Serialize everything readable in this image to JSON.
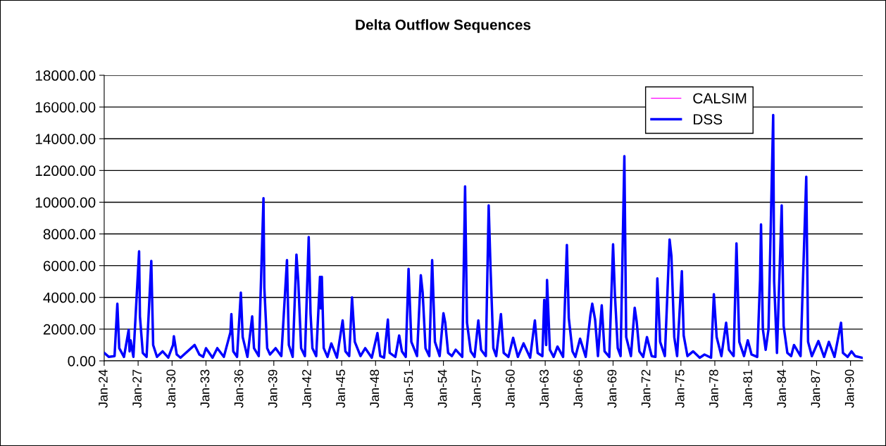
{
  "chart_data": {
    "type": "line",
    "title": "Delta Outflow Sequences",
    "x": [
      "1924-01",
      "1924-06",
      "1924-12",
      "1925-03",
      "1925-05",
      "1925-10",
      "1926-03",
      "1926-04",
      "1926-05",
      "1926-08",
      "1927-02",
      "1927-03",
      "1927-06",
      "1927-10",
      "1928-03",
      "1928-05",
      "1928-09",
      "1929-03",
      "1929-09",
      "1930-02",
      "1930-03",
      "1930-06",
      "1930-10",
      "1932-01",
      "1932-06",
      "1932-10",
      "1933-01",
      "1933-08",
      "1934-01",
      "1934-08",
      "1935-03",
      "1935-04",
      "1935-06",
      "1935-10",
      "1936-02",
      "1936-04",
      "1936-09",
      "1937-02",
      "1937-04",
      "1937-09",
      "1938-02",
      "1938-03",
      "1938-06",
      "1938-09",
      "1939-03",
      "1939-09",
      "1940-03",
      "1940-05",
      "1940-09",
      "1941-01",
      "1941-03",
      "1941-06",
      "1941-10",
      "1942-02",
      "1942-04",
      "1942-06",
      "1942-10",
      "1943-02",
      "1943-03",
      "1943-04",
      "1943-06",
      "1943-10",
      "1944-02",
      "1944-08",
      "1945-02",
      "1945-05",
      "1945-09",
      "1945-12",
      "1946-03",
      "1946-09",
      "1947-02",
      "1947-09",
      "1948-03",
      "1948-06",
      "1948-10",
      "1949-02",
      "1949-04",
      "1949-10",
      "1950-02",
      "1950-05",
      "1950-09",
      "1950-12",
      "1951-03",
      "1951-09",
      "1952-01",
      "1952-03",
      "1952-06",
      "1952-10",
      "1953-01",
      "1953-04",
      "1953-09",
      "1954-01",
      "1954-03",
      "1954-06",
      "1954-10",
      "1955-02",
      "1955-09",
      "1955-12",
      "1956-02",
      "1956-06",
      "1956-10",
      "1957-02",
      "1957-05",
      "1957-10",
      "1958-01",
      "1958-03",
      "1958-06",
      "1958-09",
      "1959-02",
      "1959-05",
      "1959-10",
      "1960-03",
      "1960-08",
      "1961-02",
      "1961-09",
      "1962-02",
      "1962-05",
      "1962-10",
      "1962-12",
      "1963-02",
      "1963-03",
      "1963-06",
      "1963-10",
      "1964-02",
      "1964-08",
      "1964-12",
      "1965-02",
      "1965-06",
      "1965-09",
      "1966-02",
      "1966-08",
      "1967-01",
      "1967-03",
      "1967-06",
      "1967-09",
      "1968-01",
      "1968-04",
      "1968-09",
      "1969-01",
      "1969-03",
      "1969-06",
      "1969-09",
      "1970-01",
      "1970-03",
      "1970-08",
      "1970-12",
      "1971-02",
      "1971-05",
      "1971-09",
      "1972-01",
      "1972-06",
      "1972-10",
      "1972-12",
      "1973-03",
      "1973-08",
      "1974-01",
      "1974-03",
      "1974-06",
      "1974-09",
      "1975-02",
      "1975-04",
      "1975-08",
      "1976-02",
      "1976-09",
      "1977-02",
      "1977-09",
      "1977-12",
      "1978-03",
      "1978-08",
      "1979-01",
      "1979-04",
      "1979-09",
      "1979-12",
      "1980-03",
      "1980-08",
      "1980-12",
      "1981-04",
      "1981-10",
      "1982-01",
      "1982-02",
      "1982-04",
      "1982-07",
      "1982-10",
      "1983-03",
      "1983-04",
      "1983-07",
      "1983-12",
      "1984-02",
      "1984-06",
      "1984-10",
      "1985-01",
      "1985-08",
      "1986-02",
      "1986-04",
      "1986-08",
      "1987-03",
      "1987-09",
      "1988-02",
      "1988-08",
      "1989-03",
      "1989-05",
      "1989-10",
      "1990-02",
      "1990-06",
      "1991-01"
    ],
    "series": [
      {
        "name": "CALSIM",
        "color": "#ff00ff",
        "values": [
          null,
          null,
          null,
          null,
          null,
          null,
          null,
          null,
          null,
          null,
          null,
          null,
          null,
          null,
          null,
          null,
          null,
          null,
          null,
          null,
          null,
          null,
          null,
          null,
          null,
          null,
          null,
          null,
          null,
          null,
          null,
          null,
          null,
          null,
          null,
          null,
          null,
          null,
          null,
          null,
          null,
          null,
          null,
          null,
          null,
          null,
          null,
          null,
          null,
          null,
          null,
          null,
          null,
          null,
          null,
          null,
          null,
          null,
          null,
          null,
          null,
          null,
          null,
          null,
          null,
          null,
          null,
          null,
          null,
          null,
          null,
          null,
          null,
          null,
          null,
          null,
          null,
          null,
          null,
          null,
          null,
          null,
          null,
          null,
          null,
          null,
          null,
          null,
          null,
          null,
          null,
          null,
          null,
          null,
          null,
          null,
          null,
          null,
          null,
          null,
          null,
          null,
          null,
          null,
          null,
          null,
          null,
          null,
          null,
          null,
          null,
          null,
          null,
          null,
          null,
          null,
          null,
          null,
          null,
          null,
          null,
          null,
          null,
          null,
          null,
          null,
          null,
          null,
          null,
          null,
          null,
          null,
          null,
          null,
          null,
          null,
          null,
          null,
          null,
          null,
          null,
          null,
          null,
          null,
          null,
          null,
          null,
          null,
          null,
          null,
          null,
          null,
          null,
          null,
          null,
          null,
          null,
          null,
          null,
          null,
          null,
          null,
          null,
          null,
          null,
          null,
          null,
          null,
          null,
          null,
          null,
          null,
          null,
          null,
          null,
          null,
          null,
          null,
          null,
          null,
          null,
          null,
          null,
          null,
          null,
          null,
          null,
          null,
          null,
          null,
          null,
          null,
          null,
          null,
          null,
          null,
          null,
          null,
          null,
          null,
          null,
          null,
          null,
          null,
          null
        ]
      },
      {
        "name": "DSS",
        "color": "#0000ff",
        "values": [
          500,
          250,
          300,
          3600,
          800,
          250,
          1950,
          600,
          1300,
          250,
          6900,
          2800,
          500,
          250,
          6300,
          1000,
          250,
          600,
          200,
          1000,
          1550,
          400,
          200,
          1000,
          400,
          250,
          800,
          200,
          800,
          250,
          1800,
          2950,
          600,
          250,
          4300,
          1500,
          250,
          2800,
          800,
          300,
          10250,
          4600,
          800,
          400,
          800,
          300,
          6350,
          1000,
          250,
          6700,
          5000,
          800,
          300,
          7800,
          3000,
          800,
          300,
          5300,
          3300,
          5300,
          800,
          250,
          1100,
          200,
          2550,
          600,
          300,
          4000,
          1200,
          300,
          800,
          200,
          1750,
          300,
          200,
          2600,
          500,
          250,
          1600,
          600,
          250,
          5800,
          1200,
          300,
          5400,
          4300,
          800,
          300,
          6350,
          1200,
          300,
          3000,
          2400,
          500,
          300,
          700,
          250,
          11000,
          2400,
          600,
          250,
          2550,
          700,
          300,
          9800,
          5900,
          800,
          300,
          2950,
          500,
          250,
          1450,
          250,
          1100,
          200,
          2550,
          500,
          300,
          3850,
          1000,
          5100,
          700,
          250,
          900,
          250,
          7300,
          2700,
          600,
          250,
          1400,
          250,
          2900,
          3600,
          2600,
          300,
          3500,
          600,
          250,
          7350,
          4200,
          800,
          300,
          12900,
          1500,
          300,
          3350,
          2500,
          600,
          250,
          1500,
          300,
          250,
          5200,
          1200,
          300,
          7650,
          6600,
          1500,
          300,
          5650,
          1600,
          300,
          600,
          200,
          400,
          200,
          4200,
          1500,
          300,
          2400,
          700,
          300,
          7400,
          1200,
          300,
          1300,
          400,
          250,
          5100,
          8600,
          2000,
          700,
          2000,
          15500,
          5000,
          500,
          9800,
          2200,
          500,
          300,
          1000,
          300,
          11600,
          1200,
          300,
          1250,
          250,
          1200,
          250,
          2400,
          500,
          250,
          600,
          300,
          200
        ]
      }
    ],
    "xlim": [
      "1924-01",
      "1991-02"
    ],
    "xticks": [
      {
        "value": "1924-01",
        "label": "Jan-24"
      },
      {
        "value": "1927-01",
        "label": "Jan-27"
      },
      {
        "value": "1930-01",
        "label": "Jan-30"
      },
      {
        "value": "1933-01",
        "label": "Jan-33"
      },
      {
        "value": "1936-01",
        "label": "Jan-36"
      },
      {
        "value": "1939-01",
        "label": "Jan-39"
      },
      {
        "value": "1942-01",
        "label": "Jan-42"
      },
      {
        "value": "1945-01",
        "label": "Jan-45"
      },
      {
        "value": "1948-01",
        "label": "Jan-48"
      },
      {
        "value": "1951-01",
        "label": "Jan-51"
      },
      {
        "value": "1954-01",
        "label": "Jan-54"
      },
      {
        "value": "1957-01",
        "label": "Jan-57"
      },
      {
        "value": "1960-01",
        "label": "Jan-60"
      },
      {
        "value": "1963-01",
        "label": "Jan-63"
      },
      {
        "value": "1966-01",
        "label": "Jan-66"
      },
      {
        "value": "1969-01",
        "label": "Jan-69"
      },
      {
        "value": "1972-01",
        "label": "Jan-72"
      },
      {
        "value": "1975-01",
        "label": "Jan-75"
      },
      {
        "value": "1978-01",
        "label": "Jan-78"
      },
      {
        "value": "1981-01",
        "label": "Jan-81"
      },
      {
        "value": "1984-01",
        "label": "Jan-84"
      },
      {
        "value": "1987-01",
        "label": "Jan-87"
      },
      {
        "value": "1990-01",
        "label": "Jan-90"
      }
    ],
    "ylim": [
      0,
      18000
    ],
    "yticks": [
      {
        "value": 0,
        "label": "0.00"
      },
      {
        "value": 2000,
        "label": "2000.00"
      },
      {
        "value": 4000,
        "label": "4000.00"
      },
      {
        "value": 6000,
        "label": "6000.00"
      },
      {
        "value": 8000,
        "label": "8000.00"
      },
      {
        "value": 10000,
        "label": "10000.00"
      },
      {
        "value": 12000,
        "label": "12000.00"
      },
      {
        "value": 14000,
        "label": "14000.00"
      },
      {
        "value": 16000,
        "label": "16000.00"
      },
      {
        "value": 18000,
        "label": "18000.00"
      }
    ],
    "grid": "y",
    "legend": "top right",
    "marker": "none",
    "line_style": "solid"
  }
}
